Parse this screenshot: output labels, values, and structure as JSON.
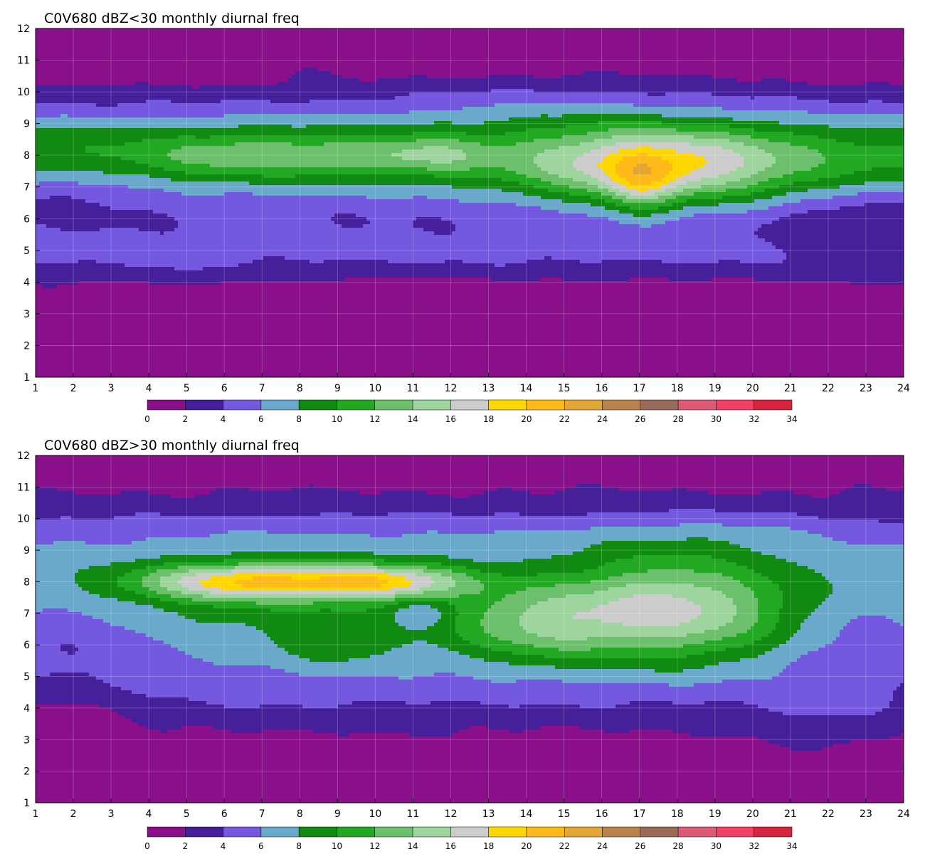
{
  "palette": [
    "#8a0f8a",
    "#46209b",
    "#7558e0",
    "#6aa8cc",
    "#118a11",
    "#22a822",
    "#6cc06c",
    "#9ed49e",
    "#cccccc",
    "#ffd700",
    "#ffba1a",
    "#e2a634",
    "#b8844a",
    "#9a6a58",
    "#dc5a74",
    "#ef4266",
    "#d6243e"
  ],
  "contour_line_color": "#f5b022",
  "chart_data": [
    {
      "type": "heatmap",
      "title": "C0V680 dBZ<30 monthly diurnal freq",
      "xlabel": "",
      "ylabel": "",
      "xlim": [
        1,
        24
      ],
      "ylim": [
        1,
        12
      ],
      "x_ticks": [
        "1",
        "2",
        "3",
        "4",
        "5",
        "6",
        "7",
        "8",
        "9",
        "10",
        "11",
        "12",
        "13",
        "14",
        "15",
        "16",
        "17",
        "18",
        "19",
        "20",
        "21",
        "22",
        "23",
        "24"
      ],
      "y_ticks": [
        "1",
        "2",
        "3",
        "4",
        "5",
        "6",
        "7",
        "8",
        "9",
        "10",
        "11",
        "12"
      ],
      "grid": true,
      "colorbar": {
        "levels": [
          0,
          2,
          4,
          6,
          8,
          10,
          12,
          14,
          16,
          18,
          20,
          22,
          24,
          26,
          28,
          30,
          32,
          34
        ],
        "labels": [
          "0",
          "2",
          "4",
          "6",
          "8",
          "10",
          "12",
          "14",
          "16",
          "18",
          "20",
          "22",
          "24",
          "26",
          "28",
          "30",
          "32",
          "34"
        ],
        "placement": "bottom"
      },
      "bands": [
        {
          "y": 8,
          "a": 9.5,
          "w": 1.15
        },
        {
          "y": 4.9,
          "a": 3.8,
          "w": 0.8
        }
      ],
      "blobs": [
        {
          "x": 17.5,
          "y": 7.6,
          "a": 9.6,
          "sx": 2.4,
          "sy": 0.85
        },
        {
          "x": 17.0,
          "y": 7.0,
          "a": 4.5,
          "sx": 0.6,
          "sy": 0.7
        },
        {
          "x": 6.2,
          "y": 8.0,
          "a": 3.0,
          "sx": 1.6,
          "sy": 0.45
        },
        {
          "x": 9.7,
          "y": 8.0,
          "a": 3.2,
          "sx": 1.7,
          "sy": 0.4
        },
        {
          "x": 11.7,
          "y": 8.0,
          "a": 2.5,
          "sx": 0.9,
          "sy": 0.4
        },
        {
          "x": 2.6,
          "y": 11.6,
          "a": -2.4,
          "sx": 3.5,
          "sy": 0.6
        },
        {
          "x": 9.0,
          "y": 11.6,
          "a": -1.6,
          "sx": 5.0,
          "sy": 0.6
        },
        {
          "x": 8.0,
          "y": 2.3,
          "a": -2.4,
          "sx": 6.0,
          "sy": 1.1
        },
        {
          "x": 17.0,
          "y": 2.3,
          "a": -2.4,
          "sx": 6.0,
          "sy": 1.1
        },
        {
          "x": 1.8,
          "y": 7.0,
          "a": -2.0,
          "sx": 1.8,
          "sy": 0.6
        },
        {
          "x": 22.8,
          "y": 5.6,
          "a": -2.4,
          "sx": 1.6,
          "sy": 0.7
        },
        {
          "x": 14.5,
          "y": 9.7,
          "a": 1.6,
          "sx": 3.5,
          "sy": 0.7
        },
        {
          "x": 8.0,
          "y": 11.0,
          "a": 1.5,
          "sx": 0.8,
          "sy": 0.5
        },
        {
          "x": 5.0,
          "y": 2.6,
          "a": 1.3,
          "sx": 0.5,
          "sy": 1.5
        },
        {
          "x": 20.0,
          "y": 1.8,
          "a": 1.2,
          "sx": 1.5,
          "sy": 0.6
        }
      ]
    },
    {
      "type": "heatmap",
      "title": "C0V680 dBZ>30 monthly diurnal freq",
      "xlabel": "",
      "ylabel": "",
      "xlim": [
        1,
        24
      ],
      "ylim": [
        1,
        12
      ],
      "x_ticks": [
        "1",
        "2",
        "3",
        "4",
        "5",
        "6",
        "7",
        "8",
        "9",
        "10",
        "11",
        "12",
        "13",
        "14",
        "15",
        "16",
        "17",
        "18",
        "19",
        "20",
        "21",
        "22",
        "23",
        "24"
      ],
      "y_ticks": [
        "1",
        "2",
        "3",
        "4",
        "5",
        "6",
        "7",
        "8",
        "9",
        "10",
        "11",
        "12"
      ],
      "grid": true,
      "colorbar": {
        "levels": [
          0,
          2,
          4,
          6,
          8,
          10,
          12,
          14,
          16,
          18,
          20,
          22,
          24,
          26,
          28,
          30,
          32,
          34
        ],
        "labels": [
          "0",
          "2",
          "4",
          "6",
          "8",
          "10",
          "12",
          "14",
          "16",
          "18",
          "20",
          "22",
          "24",
          "26",
          "28",
          "30",
          "32",
          "34"
        ],
        "placement": "bottom"
      },
      "bands": [
        {
          "y": 7.2,
          "a": 8.2,
          "w": 1.9
        }
      ],
      "blobs": [
        {
          "x": 6.5,
          "y": 8.0,
          "a": 11.5,
          "sx": 2.0,
          "sy": 0.42
        },
        {
          "x": 10.2,
          "y": 8.0,
          "a": 10.2,
          "sx": 1.6,
          "sy": 0.38
        },
        {
          "x": 17.8,
          "y": 7.1,
          "a": 8.0,
          "sx": 2.0,
          "sy": 1.1
        },
        {
          "x": 14.3,
          "y": 6.6,
          "a": 5.0,
          "sx": 1.5,
          "sy": 0.8
        },
        {
          "x": 9.0,
          "y": 6.0,
          "a": 2.5,
          "sx": 0.9,
          "sy": 0.5
        },
        {
          "x": 1.6,
          "y": 6.5,
          "a": -3.5,
          "sx": 2.2,
          "sy": 1.0
        },
        {
          "x": 22.8,
          "y": 6.6,
          "a": -3.0,
          "sx": 1.6,
          "sy": 1.0
        },
        {
          "x": 11.2,
          "y": 7.0,
          "a": -3.0,
          "sx": 0.6,
          "sy": 0.35
        },
        {
          "x": 7.0,
          "y": 4.3,
          "a": 1.2,
          "sx": 4.5,
          "sy": 0.8
        },
        {
          "x": 16.5,
          "y": 4.5,
          "a": 1.0,
          "sx": 4.0,
          "sy": 0.8
        },
        {
          "x": 22.0,
          "y": 3.8,
          "a": 1.8,
          "sx": 1.5,
          "sy": 0.8
        },
        {
          "x": 9.5,
          "y": 9.5,
          "a": 1.6,
          "sx": 7.0,
          "sy": 0.6
        },
        {
          "x": 19.0,
          "y": 9.4,
          "a": 1.6,
          "sx": 2.5,
          "sy": 0.6
        },
        {
          "x": 1.5,
          "y": 3.6,
          "a": -1.5,
          "sx": 1.5,
          "sy": 0.8
        }
      ]
    }
  ]
}
